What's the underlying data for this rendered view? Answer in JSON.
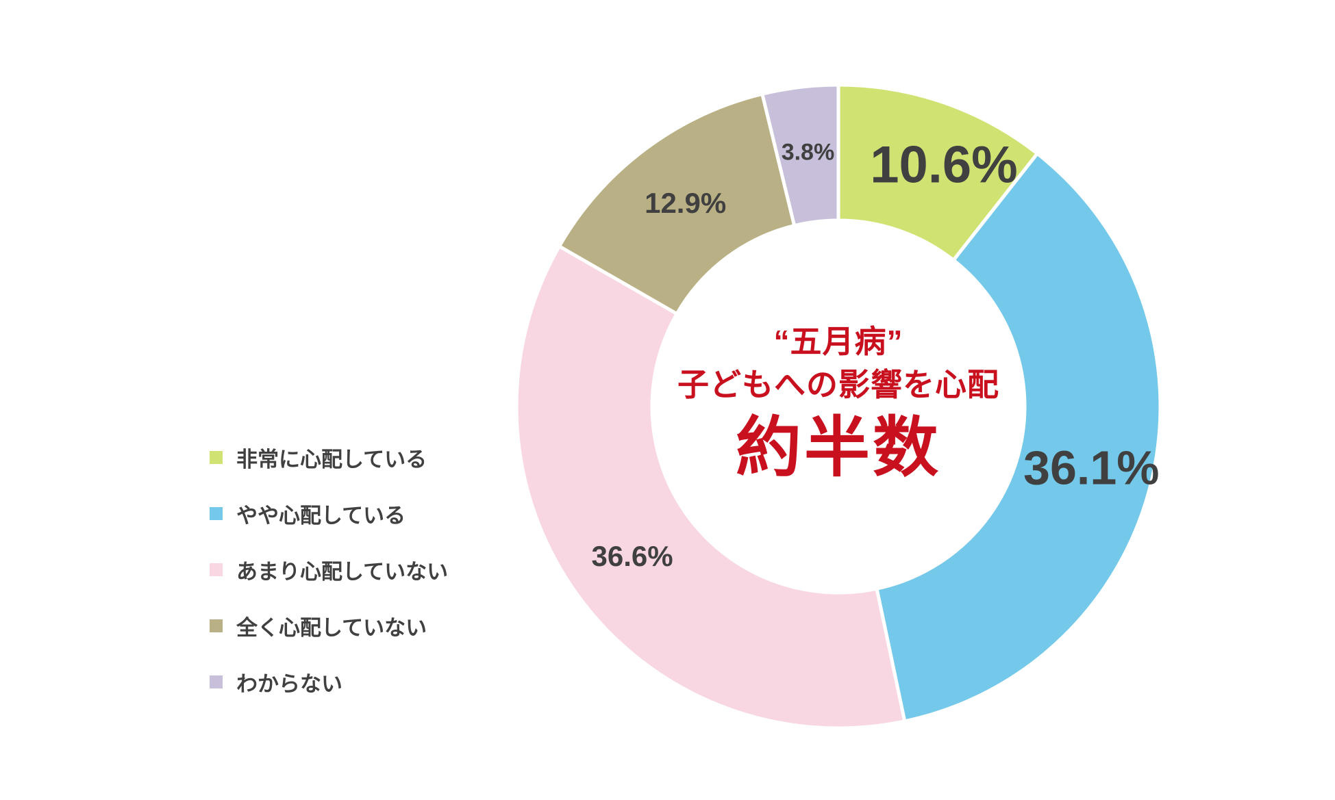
{
  "page": {
    "background_color": "#FFFFFF"
  },
  "chart_data": {
    "type": "pie",
    "subtype": "donut",
    "unit": "%",
    "total": 100,
    "direction": "clockwise",
    "start_angle_deg": 0,
    "donut_hole_ratio": 0.58,
    "grid": false,
    "legend_position": "left",
    "label_color": "#404040",
    "legend_text_color": "#404040",
    "slices": [
      {
        "label": "非常に心配している",
        "value": 10.6,
        "display": "10.6%",
        "color": "#D0E271",
        "emphasis": true
      },
      {
        "label": "やや心配している",
        "value": 36.1,
        "display": "36.1%",
        "color": "#74C9EA",
        "emphasis": true
      },
      {
        "label": "あまり心配していない",
        "value": 36.6,
        "display": "36.6%",
        "color": "#F8D7E3",
        "emphasis": false
      },
      {
        "label": "全く心配していない",
        "value": 12.9,
        "display": "12.9%",
        "color": "#B9B185",
        "emphasis": false
      },
      {
        "label": "わからない",
        "value": 3.8,
        "display": "3.8%",
        "color": "#C8C0DB",
        "emphasis": false
      }
    ],
    "center_text": {
      "line1": "“五月病”",
      "line2": "子どもへの影響を心配",
      "line3": "約半数",
      "color": "#C8101E"
    }
  }
}
